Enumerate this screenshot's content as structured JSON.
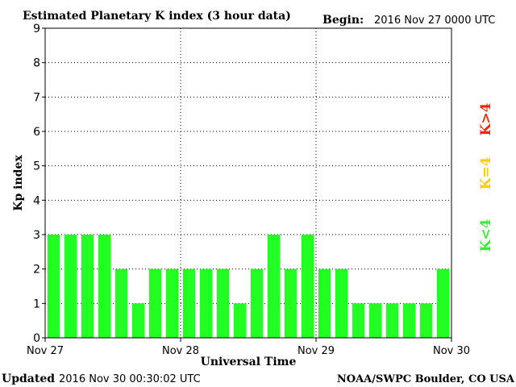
{
  "header": {
    "title": "Estimated Planetary K index (3 hour data)",
    "begin_label": "Begin:",
    "begin_value": "2016 Nov 27 0000 UTC"
  },
  "footer": {
    "updated_label": "Updated",
    "updated_value": "2016 Nov 30 00:30:02 UTC",
    "source": "NOAA/SWPC Boulder, CO USA"
  },
  "legend": {
    "items": [
      {
        "label": "K<4",
        "color": "#33ee33"
      },
      {
        "label": "K=4",
        "color": "#ffcc00"
      },
      {
        "label": "K>4",
        "color": "#ff2200"
      }
    ]
  },
  "chart_data": {
    "type": "bar",
    "title": "Estimated Planetary K index (3 hour data)",
    "xlabel": "Universal Time",
    "ylabel": "Kp index",
    "ylim": [
      0,
      9
    ],
    "yticks": [
      "0",
      "1",
      "2",
      "3",
      "4",
      "5",
      "6",
      "7",
      "8",
      "9"
    ],
    "xticks": [
      "Nov 27",
      "Nov 28",
      "Nov 29",
      "Nov 30"
    ],
    "values": [
      3,
      3,
      3,
      3,
      2,
      1,
      2,
      2,
      2,
      2,
      2,
      1,
      2,
      3,
      2,
      3,
      2,
      2,
      1,
      1,
      1,
      1,
      1,
      2
    ],
    "bar_color": "#22ff22",
    "grid": "dotted vertical at day boundaries, dotted horizontal at each integer"
  }
}
